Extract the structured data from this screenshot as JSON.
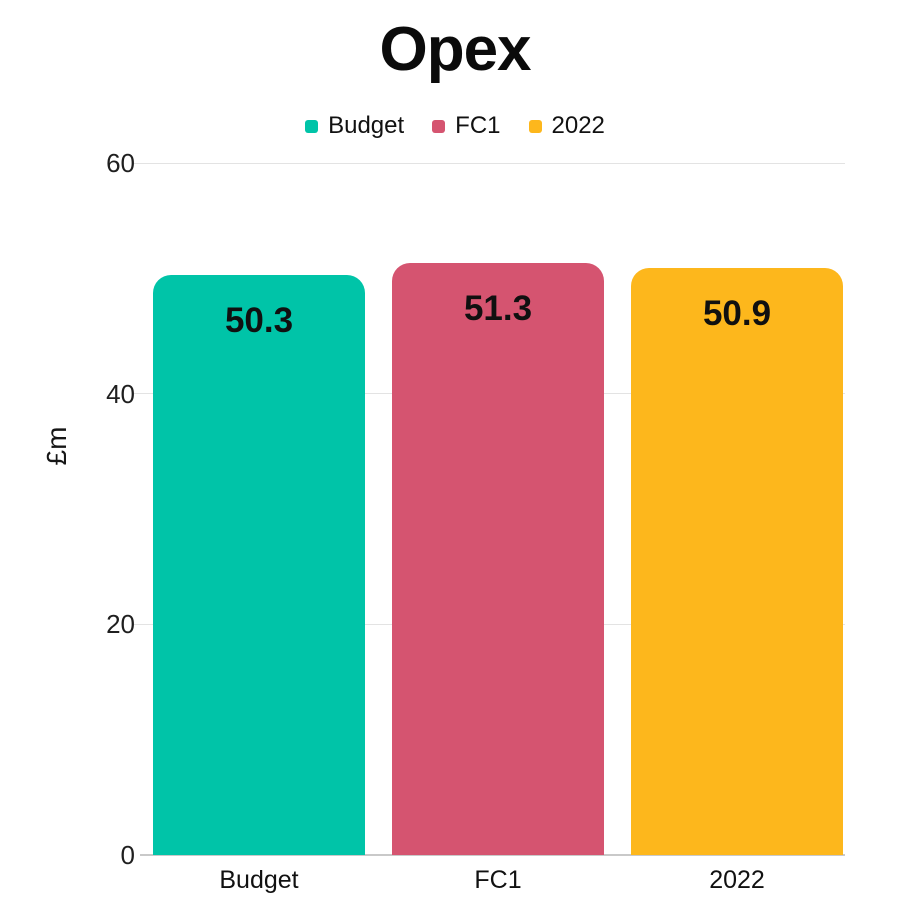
{
  "title": "Opex",
  "legend": [
    {
      "label": "Budget",
      "color": "#00C4A8"
    },
    {
      "label": "FC1",
      "color": "#D55470"
    },
    {
      "label": "2022",
      "color": "#FDB71C"
    }
  ],
  "chart_data": {
    "type": "bar",
    "title": "Opex",
    "categories": [
      "Budget",
      "FC1",
      "2022"
    ],
    "values": [
      50.3,
      51.3,
      50.9
    ],
    "value_labels": [
      "50.3",
      "51.3",
      "50.9"
    ],
    "bar_colors": [
      "#00C4A8",
      "#D55470",
      "#FDB71C"
    ],
    "xlabel": "",
    "ylabel": "£m",
    "ylim": [
      0,
      60
    ],
    "yticks": [
      0,
      20,
      40,
      60
    ],
    "grid": true,
    "legend_position": "top",
    "value_label_color": "#101010",
    "gridline_color": "#e3e3e3"
  }
}
